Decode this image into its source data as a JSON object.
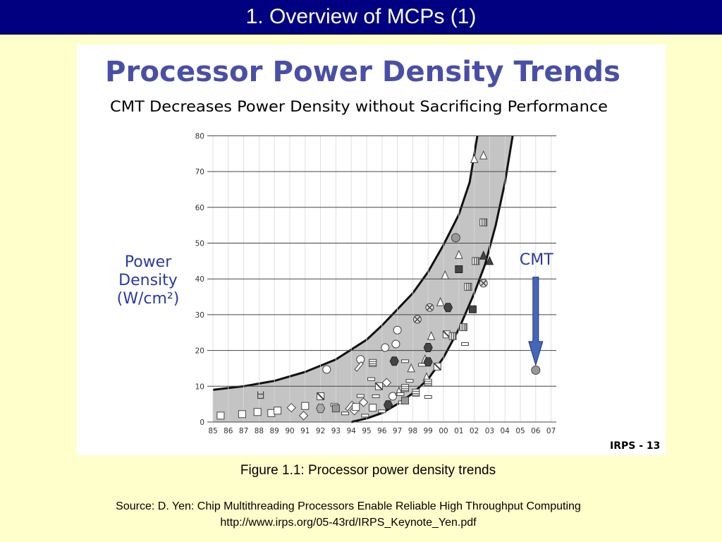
{
  "slide": {
    "title": "1. Overview of MCPs (1)",
    "caption": "Figure 1.1: Processor power density trends",
    "source_line1": "Source: D. Yen: Chip Multithreading Processors Enable Reliable High Throughput Computing",
    "source_line2": "http://www.irps.org/05-43rd/IRPS_Keynote_Yen.pdf"
  },
  "colors": {
    "title_bar": "#000080",
    "background": "#ffffcc",
    "chart_title": "#4a4fa6",
    "band_fill": "#c4c4c4",
    "arrow": "#4466bb",
    "ylabel": "#2a3a9e"
  },
  "chart_data": {
    "type": "scatter",
    "title": "Processor Power Density Trends",
    "subtitle": "CMT Decreases Power Density without Sacrificing Performance",
    "ylabel": "Power Density (W/cm²)",
    "xlabel": "",
    "x_ticks": [
      "85",
      "86",
      "87",
      "88",
      "89",
      "90",
      "91",
      "92",
      "93",
      "94",
      "95",
      "96",
      "97",
      "98",
      "99",
      "00",
      "01",
      "02",
      "03",
      "04",
      "05",
      "06",
      "07"
    ],
    "y_ticks": [
      0,
      10,
      20,
      30,
      40,
      50,
      60,
      70,
      80
    ],
    "ylim": [
      0,
      80
    ],
    "xlim_index": [
      0,
      22
    ],
    "grid": "horizontal",
    "annotation": "CMT",
    "footer": "IRPS - 13",
    "band_upper": [
      [
        0,
        9
      ],
      [
        2,
        10
      ],
      [
        4,
        11.5
      ],
      [
        6,
        14
      ],
      [
        8,
        17.5
      ],
      [
        10,
        23
      ],
      [
        11,
        27
      ],
      [
        12,
        31.5
      ],
      [
        13,
        36
      ],
      [
        14,
        42
      ],
      [
        15,
        49.5
      ],
      [
        16,
        58
      ],
      [
        16.7,
        67
      ],
      [
        17.2,
        80
      ]
    ],
    "band_lower": [
      [
        9,
        0
      ],
      [
        10,
        1
      ],
      [
        11,
        2.5
      ],
      [
        12,
        5
      ],
      [
        13,
        8
      ],
      [
        14,
        12
      ],
      [
        15,
        18
      ],
      [
        16,
        26
      ],
      [
        17,
        36
      ],
      [
        17.7,
        44
      ],
      [
        18.4,
        55
      ],
      [
        19,
        67
      ],
      [
        19.5,
        80
      ]
    ],
    "points": [
      {
        "x": 0.5,
        "y": 1.8,
        "m": "square-open"
      },
      {
        "x": 1.9,
        "y": 2.2,
        "m": "square-open"
      },
      {
        "x": 2.9,
        "y": 2.8,
        "m": "square-open"
      },
      {
        "x": 3.8,
        "y": 2.5,
        "m": "square-open"
      },
      {
        "x": 4.2,
        "y": 3.2,
        "m": "square-open"
      },
      {
        "x": 3.1,
        "y": 7.6,
        "m": "mu"
      },
      {
        "x": 5.1,
        "y": 4.0,
        "m": "diamond-open"
      },
      {
        "x": 6.0,
        "y": 4.5,
        "m": "square-open"
      },
      {
        "x": 5.9,
        "y": 1.8,
        "m": "diamond-open"
      },
      {
        "x": 7.0,
        "y": 3.8,
        "m": "hexagon-gray"
      },
      {
        "x": 7.0,
        "y": 7.2,
        "m": "square-half"
      },
      {
        "x": 7.4,
        "y": 14.7,
        "m": "circle-open"
      },
      {
        "x": 7.9,
        "y": 4.8,
        "m": "dash"
      },
      {
        "x": 8.0,
        "y": 3.8,
        "m": "square-gray"
      },
      {
        "x": 8.6,
        "y": 2.4,
        "m": "dash"
      },
      {
        "x": 8.9,
        "y": 4.5,
        "m": "pen"
      },
      {
        "x": 9.2,
        "y": 3.2,
        "m": "diamond-open"
      },
      {
        "x": 9.3,
        "y": 4.2,
        "m": "square-open"
      },
      {
        "x": 9.6,
        "y": 7.3,
        "m": "dash"
      },
      {
        "x": 9.8,
        "y": 5.5,
        "m": "diamond-open"
      },
      {
        "x": 9.9,
        "y": 1.8,
        "m": "dash"
      },
      {
        "x": 9.6,
        "y": 17.5,
        "m": "circle-open"
      },
      {
        "x": 9.5,
        "y": 15.5,
        "m": "pen"
      },
      {
        "x": 10.4,
        "y": 16.5,
        "m": "stripe-h"
      },
      {
        "x": 10.3,
        "y": 12.0,
        "m": "dash"
      },
      {
        "x": 10.4,
        "y": 4.0,
        "m": "square-open"
      },
      {
        "x": 10.6,
        "y": 7.2,
        "m": "dash"
      },
      {
        "x": 10.8,
        "y": 10.0,
        "m": "square-half"
      },
      {
        "x": 11.0,
        "y": 3.0,
        "m": "dash"
      },
      {
        "x": 11.3,
        "y": 11.0,
        "m": "diamond-open"
      },
      {
        "x": 11.2,
        "y": 20.8,
        "m": "circle-open"
      },
      {
        "x": 11.4,
        "y": 4.8,
        "m": "hexagon-dark"
      },
      {
        "x": 11.7,
        "y": 7.2,
        "m": "circle-open"
      },
      {
        "x": 11.8,
        "y": 17.0,
        "m": "hexagon-dark"
      },
      {
        "x": 11.9,
        "y": 21.8,
        "m": "circle-open"
      },
      {
        "x": 12.0,
        "y": 25.7,
        "m": "circle-open"
      },
      {
        "x": 12.1,
        "y": 8.5,
        "m": "triangle-open"
      },
      {
        "x": 12.2,
        "y": 7.8,
        "m": "dash"
      },
      {
        "x": 12.3,
        "y": 5.5,
        "m": "dash"
      },
      {
        "x": 12.5,
        "y": 6.0,
        "m": "square-gray"
      },
      {
        "x": 12.5,
        "y": 17.0,
        "m": "dash"
      },
      {
        "x": 12.8,
        "y": 11.5,
        "m": "dash"
      },
      {
        "x": 12.9,
        "y": 15.0,
        "m": "triangle-open"
      },
      {
        "x": 12.5,
        "y": 9.5,
        "m": "stripe-h"
      },
      {
        "x": 13.2,
        "y": 8.2,
        "m": "stripe-h"
      },
      {
        "x": 13.3,
        "y": 28.7,
        "m": "circle-cross"
      },
      {
        "x": 13.6,
        "y": 16.0,
        "m": "dash"
      },
      {
        "x": 13.8,
        "y": 17.5,
        "m": "triangle-open"
      },
      {
        "x": 13.9,
        "y": 12.5,
        "m": "triangle-open"
      },
      {
        "x": 14.0,
        "y": 20.8,
        "m": "hexagon-dark"
      },
      {
        "x": 14.0,
        "y": 16.8,
        "m": "hexagon-dark"
      },
      {
        "x": 14.0,
        "y": 11.0,
        "m": "stripe-h"
      },
      {
        "x": 14.1,
        "y": 32.0,
        "m": "circle-cross"
      },
      {
        "x": 14.2,
        "y": 24.0,
        "m": "triangle-open"
      },
      {
        "x": 14.0,
        "y": 7.0,
        "m": "dash"
      },
      {
        "x": 14.6,
        "y": 15.5,
        "m": "square-half"
      },
      {
        "x": 14.8,
        "y": 33.5,
        "m": "triangle-open"
      },
      {
        "x": 15.2,
        "y": 24.5,
        "m": "square-half"
      },
      {
        "x": 15.3,
        "y": 32.0,
        "m": "hexagon-dark"
      },
      {
        "x": 15.6,
        "y": 24.0,
        "m": "stripe-v"
      },
      {
        "x": 15.1,
        "y": 41.0,
        "m": "triangle-open"
      },
      {
        "x": 15.8,
        "y": 51.5,
        "m": "circle-gray"
      },
      {
        "x": 16.0,
        "y": 46.7,
        "m": "triangle-open"
      },
      {
        "x": 16.0,
        "y": 42.7,
        "m": "square-dark"
      },
      {
        "x": 16.3,
        "y": 26.5,
        "m": "stripe-v"
      },
      {
        "x": 16.4,
        "y": 21.8,
        "m": "dash"
      },
      {
        "x": 16.6,
        "y": 37.8,
        "m": "stripe-v"
      },
      {
        "x": 16.9,
        "y": 31.5,
        "m": "square-dark"
      },
      {
        "x": 17.0,
        "y": 73.5,
        "m": "triangle-open"
      },
      {
        "x": 17.1,
        "y": 45.0,
        "m": "stripe-v"
      },
      {
        "x": 17.6,
        "y": 74.5,
        "m": "triangle-open"
      },
      {
        "x": 17.6,
        "y": 55.8,
        "m": "stripe-v"
      },
      {
        "x": 17.6,
        "y": 46.5,
        "m": "triangle-dark"
      },
      {
        "x": 17.6,
        "y": 38.8,
        "m": "circle-cross"
      },
      {
        "x": 18.0,
        "y": 45.0,
        "m": "triangle-dark"
      },
      {
        "x": 21.0,
        "y": 14.5,
        "m": "circle-gray"
      }
    ]
  }
}
